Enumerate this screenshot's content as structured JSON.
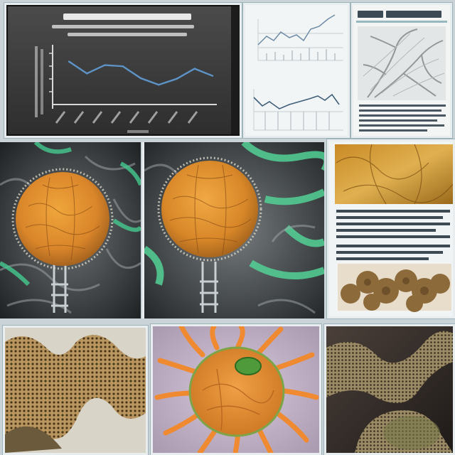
{
  "top_left_chart": {
    "title_scribble": "",
    "subtitle_scribble": "",
    "chart_data": {
      "type": "line",
      "x": [
        0,
        1,
        2,
        3,
        4,
        5,
        6,
        7,
        8
      ],
      "series": [
        {
          "values": [
            72,
            52,
            66,
            64,
            44,
            33,
            43,
            60,
            48
          ]
        }
      ],
      "ylim": [
        0,
        100
      ],
      "grid": false,
      "title": "",
      "xlabel": "",
      "ylabel": ""
    }
  },
  "colors": {
    "page_bg": "#c9d3d8",
    "chart_bg": "#3d3d3d",
    "chart_line": "#5e93c8",
    "sphere": "#e0902c",
    "green_fibers": "#4fc690",
    "paper": "#f0f3f4"
  }
}
